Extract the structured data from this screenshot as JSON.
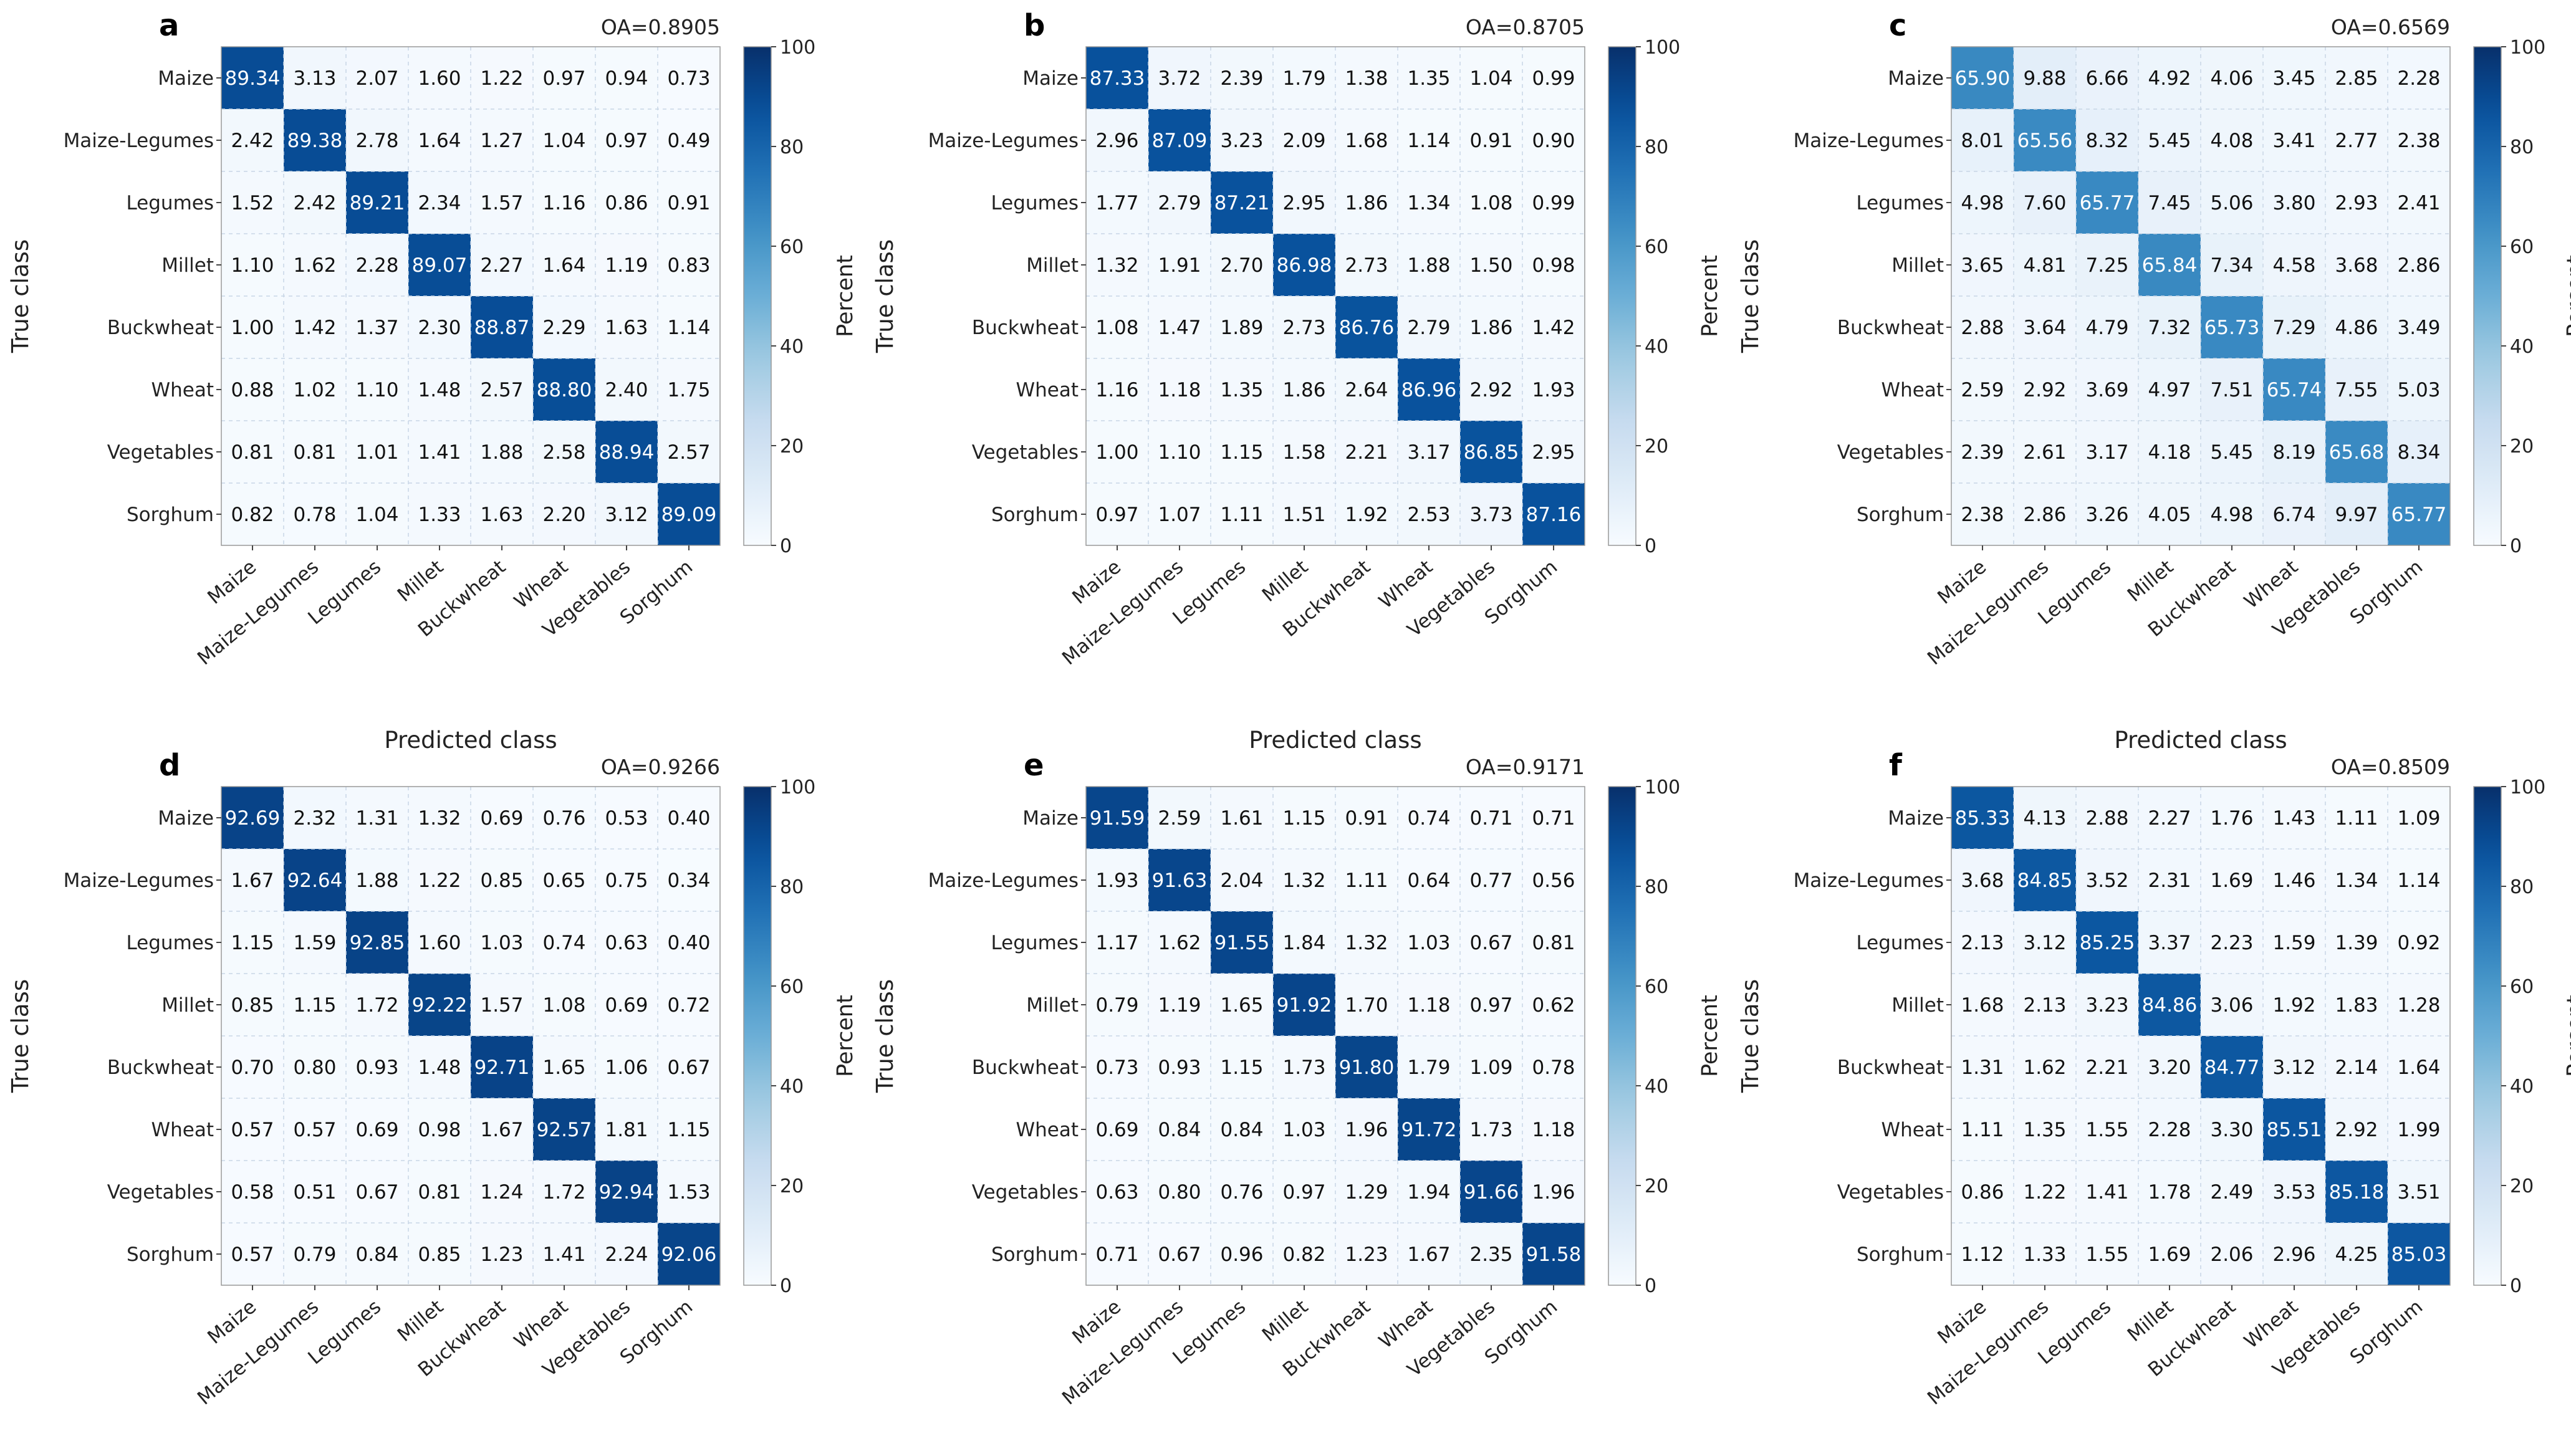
{
  "classes": [
    "Maize",
    "Maize-Legumes",
    "Legumes",
    "Millet",
    "Buckwheat",
    "Wheat",
    "Vegetables",
    "Sorghum"
  ],
  "xlabel": "Predicted class",
  "ylabel": "True class",
  "colorbar": {
    "label": "Percent",
    "ticks": [
      0,
      20,
      40,
      60,
      80,
      100
    ],
    "range": [
      0,
      100
    ]
  },
  "colors": {
    "low": "#f7fbff",
    "mid": "#4292c6",
    "high": "#08306b"
  },
  "chart_data": [
    {
      "type": "heatmap",
      "panel": "a",
      "oa_label": "OA=0.8905",
      "matrix": [
        [
          89.34,
          3.13,
          2.07,
          1.6,
          1.22,
          0.97,
          0.94,
          0.73
        ],
        [
          2.42,
          89.38,
          2.78,
          1.64,
          1.27,
          1.04,
          0.97,
          0.49
        ],
        [
          1.52,
          2.42,
          89.21,
          2.34,
          1.57,
          1.16,
          0.86,
          0.91
        ],
        [
          1.1,
          1.62,
          2.28,
          89.07,
          2.27,
          1.64,
          1.19,
          0.83
        ],
        [
          1.0,
          1.42,
          1.37,
          2.3,
          88.87,
          2.29,
          1.63,
          1.14
        ],
        [
          0.88,
          1.02,
          1.1,
          1.48,
          2.57,
          88.8,
          2.4,
          1.75
        ],
        [
          0.81,
          0.81,
          1.01,
          1.41,
          1.88,
          2.58,
          88.94,
          2.57
        ],
        [
          0.82,
          0.78,
          1.04,
          1.33,
          1.63,
          2.2,
          3.12,
          89.09
        ]
      ]
    },
    {
      "type": "heatmap",
      "panel": "b",
      "oa_label": "OA=0.8705",
      "matrix": [
        [
          87.33,
          3.72,
          2.39,
          1.79,
          1.38,
          1.35,
          1.04,
          0.99
        ],
        [
          2.96,
          87.09,
          3.23,
          2.09,
          1.68,
          1.14,
          0.91,
          0.9
        ],
        [
          1.77,
          2.79,
          87.21,
          2.95,
          1.86,
          1.34,
          1.08,
          0.99
        ],
        [
          1.32,
          1.91,
          2.7,
          86.98,
          2.73,
          1.88,
          1.5,
          0.98
        ],
        [
          1.08,
          1.47,
          1.89,
          2.73,
          86.76,
          2.79,
          1.86,
          1.42
        ],
        [
          1.16,
          1.18,
          1.35,
          1.86,
          2.64,
          86.96,
          2.92,
          1.93
        ],
        [
          1.0,
          1.1,
          1.15,
          1.58,
          2.21,
          3.17,
          86.85,
          2.95
        ],
        [
          0.97,
          1.07,
          1.11,
          1.51,
          1.92,
          2.53,
          3.73,
          87.16
        ]
      ]
    },
    {
      "type": "heatmap",
      "panel": "c",
      "oa_label": "OA=0.6569",
      "matrix": [
        [
          65.9,
          9.88,
          6.66,
          4.92,
          4.06,
          3.45,
          2.85,
          2.28
        ],
        [
          8.01,
          65.56,
          8.32,
          5.45,
          4.08,
          3.41,
          2.77,
          2.38
        ],
        [
          4.98,
          7.6,
          65.77,
          7.45,
          5.06,
          3.8,
          2.93,
          2.41
        ],
        [
          3.65,
          4.81,
          7.25,
          65.84,
          7.34,
          4.58,
          3.68,
          2.86
        ],
        [
          2.88,
          3.64,
          4.79,
          7.32,
          65.73,
          7.29,
          4.86,
          3.49
        ],
        [
          2.59,
          2.92,
          3.69,
          4.97,
          7.51,
          65.74,
          7.55,
          5.03
        ],
        [
          2.39,
          2.61,
          3.17,
          4.18,
          5.45,
          8.19,
          65.68,
          8.34
        ],
        [
          2.38,
          2.86,
          3.26,
          4.05,
          4.98,
          6.74,
          9.97,
          65.77
        ]
      ]
    },
    {
      "type": "heatmap",
      "panel": "d",
      "oa_label": "OA=0.9266",
      "matrix": [
        [
          92.69,
          2.32,
          1.31,
          1.32,
          0.69,
          0.76,
          0.53,
          0.4
        ],
        [
          1.67,
          92.64,
          1.88,
          1.22,
          0.85,
          0.65,
          0.75,
          0.34
        ],
        [
          1.15,
          1.59,
          92.85,
          1.6,
          1.03,
          0.74,
          0.63,
          0.4
        ],
        [
          0.85,
          1.15,
          1.72,
          92.22,
          1.57,
          1.08,
          0.69,
          0.72
        ],
        [
          0.7,
          0.8,
          0.93,
          1.48,
          92.71,
          1.65,
          1.06,
          0.67
        ],
        [
          0.57,
          0.57,
          0.69,
          0.98,
          1.67,
          92.57,
          1.81,
          1.15
        ],
        [
          0.58,
          0.51,
          0.67,
          0.81,
          1.24,
          1.72,
          92.94,
          1.53
        ],
        [
          0.57,
          0.79,
          0.84,
          0.85,
          1.23,
          1.41,
          2.24,
          92.06
        ]
      ]
    },
    {
      "type": "heatmap",
      "panel": "e",
      "oa_label": "OA=0.9171",
      "matrix": [
        [
          91.59,
          2.59,
          1.61,
          1.15,
          0.91,
          0.74,
          0.71,
          0.71
        ],
        [
          1.93,
          91.63,
          2.04,
          1.32,
          1.11,
          0.64,
          0.77,
          0.56
        ],
        [
          1.17,
          1.62,
          91.55,
          1.84,
          1.32,
          1.03,
          0.67,
          0.81
        ],
        [
          0.79,
          1.19,
          1.65,
          91.92,
          1.7,
          1.18,
          0.97,
          0.62
        ],
        [
          0.73,
          0.93,
          1.15,
          1.73,
          91.8,
          1.79,
          1.09,
          0.78
        ],
        [
          0.69,
          0.84,
          0.84,
          1.03,
          1.96,
          91.72,
          1.73,
          1.18
        ],
        [
          0.63,
          0.8,
          0.76,
          0.97,
          1.29,
          1.94,
          91.66,
          1.96
        ],
        [
          0.71,
          0.67,
          0.96,
          0.82,
          1.23,
          1.67,
          2.35,
          91.58
        ]
      ]
    },
    {
      "type": "heatmap",
      "panel": "f",
      "oa_label": "OA=0.8509",
      "matrix": [
        [
          85.33,
          4.13,
          2.88,
          2.27,
          1.76,
          1.43,
          1.11,
          1.09
        ],
        [
          3.68,
          84.85,
          3.52,
          2.31,
          1.69,
          1.46,
          1.34,
          1.14
        ],
        [
          2.13,
          3.12,
          85.25,
          3.37,
          2.23,
          1.59,
          1.39,
          0.92
        ],
        [
          1.68,
          2.13,
          3.23,
          84.86,
          3.06,
          1.92,
          1.83,
          1.28
        ],
        [
          1.31,
          1.62,
          2.21,
          3.2,
          84.77,
          3.12,
          2.14,
          1.64
        ],
        [
          1.11,
          1.35,
          1.55,
          2.28,
          3.3,
          85.51,
          2.92,
          1.99
        ],
        [
          0.86,
          1.22,
          1.41,
          1.78,
          2.49,
          3.53,
          85.18,
          3.51
        ],
        [
          1.12,
          1.33,
          1.55,
          1.69,
          2.06,
          2.96,
          4.25,
          85.03
        ]
      ]
    }
  ]
}
